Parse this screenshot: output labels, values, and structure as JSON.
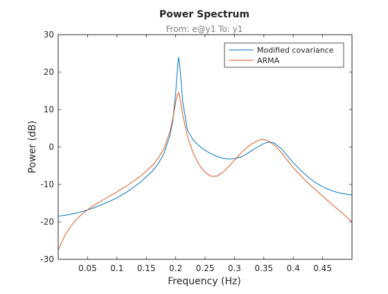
{
  "chart_data": {
    "type": "line",
    "title": "Power Spectrum",
    "subtitle": "From: e@y1  To: y1",
    "xlabel": "Frequency  (Hz)",
    "ylabel": "Power (dB)",
    "xlim": [
      0.0,
      0.5
    ],
    "ylim": [
      -30,
      30
    ],
    "xticks": [
      0.05,
      0.1,
      0.15,
      0.2,
      0.25,
      0.3,
      0.35,
      0.4,
      0.45
    ],
    "xtick_labels": [
      "0.05",
      "0.1",
      "0.15",
      "0.2",
      "0.25",
      "0.3",
      "0.35",
      "0.4",
      "0.45"
    ],
    "yticks": [
      -30,
      -20,
      -10,
      0,
      10,
      20,
      30
    ],
    "ytick_labels": [
      "-30",
      "-20",
      "-10",
      "0",
      "10",
      "20",
      "30"
    ],
    "grid": false,
    "legend_position": "top-right",
    "series": [
      {
        "name": "Modified covariance",
        "color": "#0072bd",
        "x": [
          0.0,
          0.02,
          0.04,
          0.06,
          0.08,
          0.1,
          0.12,
          0.14,
          0.16,
          0.17,
          0.18,
          0.19,
          0.195,
          0.2,
          0.203,
          0.205,
          0.208,
          0.212,
          0.22,
          0.23,
          0.24,
          0.25,
          0.26,
          0.27,
          0.28,
          0.29,
          0.3,
          0.31,
          0.32,
          0.33,
          0.34,
          0.35,
          0.355,
          0.36,
          0.365,
          0.37,
          0.38,
          0.39,
          0.4,
          0.41,
          0.42,
          0.43,
          0.44,
          0.45,
          0.46,
          0.47,
          0.48,
          0.49,
          0.5
        ],
        "y": [
          -18.5,
          -18.0,
          -17.3,
          -16.3,
          -15.0,
          -13.6,
          -11.7,
          -9.4,
          -6.5,
          -4.5,
          -1.8,
          3.0,
          7.0,
          14.5,
          21.0,
          24.0,
          20.0,
          12.0,
          4.5,
          1.8,
          0.3,
          -0.9,
          -1.8,
          -2.5,
          -3.0,
          -3.2,
          -3.1,
          -2.7,
          -1.9,
          -0.9,
          0.1,
          0.9,
          1.2,
          1.3,
          1.2,
          0.8,
          -0.5,
          -2.3,
          -4.2,
          -5.8,
          -7.3,
          -8.6,
          -9.7,
          -10.6,
          -11.3,
          -11.9,
          -12.3,
          -12.6,
          -12.8
        ]
      },
      {
        "name": "ARMA",
        "color": "#d95319",
        "x": [
          0.0,
          0.01,
          0.02,
          0.03,
          0.04,
          0.05,
          0.06,
          0.08,
          0.1,
          0.12,
          0.14,
          0.16,
          0.17,
          0.18,
          0.19,
          0.195,
          0.2,
          0.203,
          0.205,
          0.208,
          0.212,
          0.22,
          0.23,
          0.24,
          0.25,
          0.26,
          0.27,
          0.28,
          0.29,
          0.3,
          0.31,
          0.32,
          0.33,
          0.34,
          0.345,
          0.35,
          0.355,
          0.36,
          0.37,
          0.38,
          0.39,
          0.4,
          0.41,
          0.42,
          0.43,
          0.44,
          0.45,
          0.46,
          0.47,
          0.48,
          0.49,
          0.5
        ],
        "y": [
          -27.5,
          -24.0,
          -21.5,
          -19.5,
          -18.0,
          -16.8,
          -15.7,
          -13.8,
          -12.0,
          -10.0,
          -7.8,
          -5.0,
          -3.0,
          -0.5,
          4.0,
          7.5,
          12.0,
          14.0,
          14.5,
          12.5,
          8.5,
          2.8,
          -1.8,
          -4.8,
          -6.8,
          -7.8,
          -7.8,
          -6.8,
          -5.3,
          -3.5,
          -1.8,
          -0.3,
          0.9,
          1.7,
          2.0,
          2.0,
          1.8,
          1.4,
          0.2,
          -1.5,
          -3.5,
          -5.5,
          -7.2,
          -8.8,
          -10.3,
          -11.7,
          -13.1,
          -14.5,
          -15.9,
          -17.2,
          -18.6,
          -20.0
        ]
      }
    ]
  }
}
